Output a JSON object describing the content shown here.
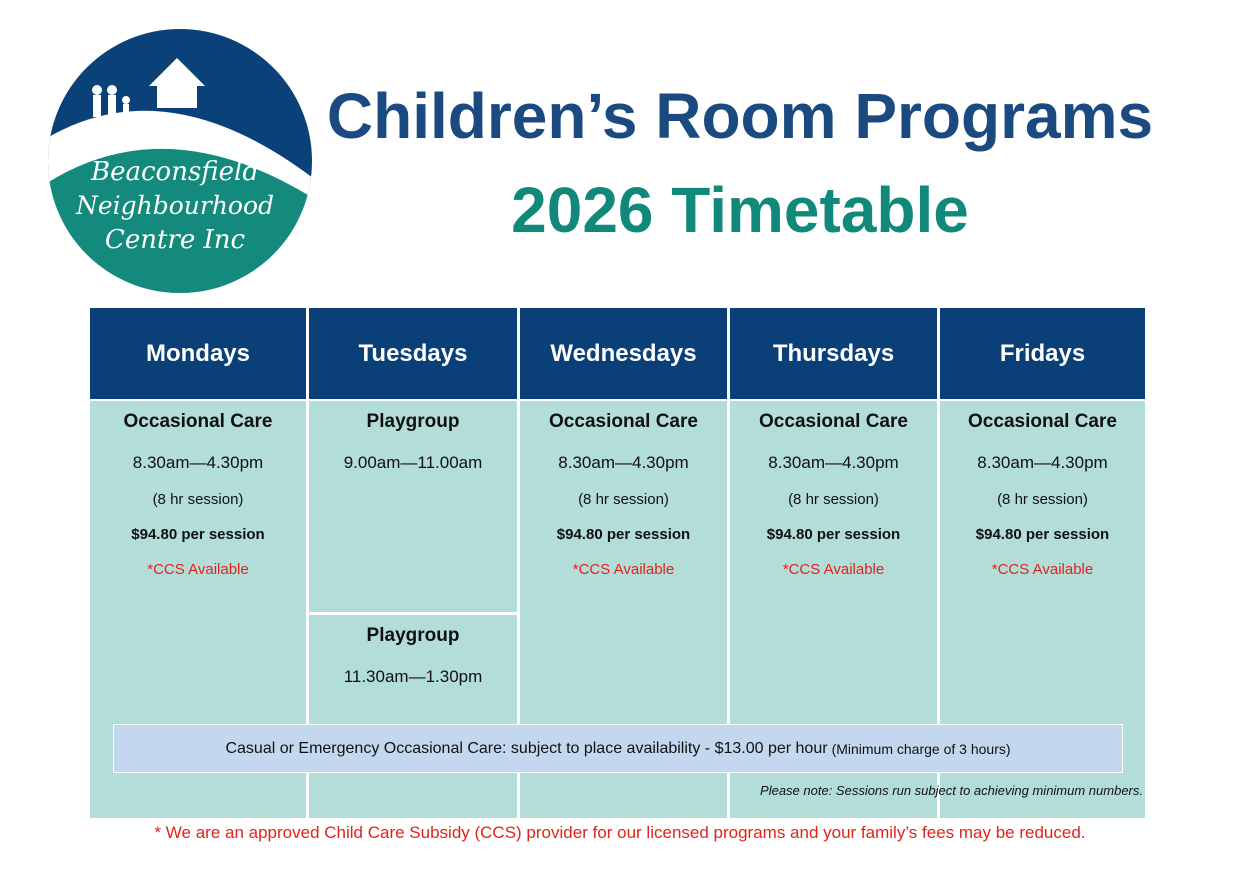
{
  "logo": {
    "line1": "Beaconsfield",
    "line2": "Neighbourhood",
    "line3": "Centre Inc",
    "colors": {
      "navy": "#0b4179",
      "teal": "#138a7c"
    }
  },
  "title": {
    "line1": "Children’s Room Programs",
    "line2": "2026 Timetable"
  },
  "days": [
    "Mondays",
    "Tuesdays",
    "Wednesdays",
    "Thursdays",
    "Fridays"
  ],
  "occasional": {
    "title": "Occasional Care",
    "hours": "8.30am—4.30pm",
    "session": "(8 hr session)",
    "price": "$94.80 per session",
    "ccs": "*CCS Available"
  },
  "tuesday": [
    {
      "title": "Playgroup",
      "hours": "9.00am—11.00am"
    },
    {
      "title": "Playgroup",
      "hours": "11.30am—1.30pm"
    }
  ],
  "banner": {
    "text": "Casual or Emergency Occasional Care:  subject to place availability - $13.00 per hour",
    "small": "(Minimum charge of 3 hours)"
  },
  "note": "Please note: Sessions run subject to achieving minimum numbers.",
  "footer": "* We are an approved Child Care Subsidy (CCS) provider for our licensed programs and your family’s fees may be reduced.",
  "colors": {
    "header": "#0b3f78",
    "cell": "#b3ddd9",
    "banner": "#c3d8ee",
    "ccs": "#e2231a"
  }
}
